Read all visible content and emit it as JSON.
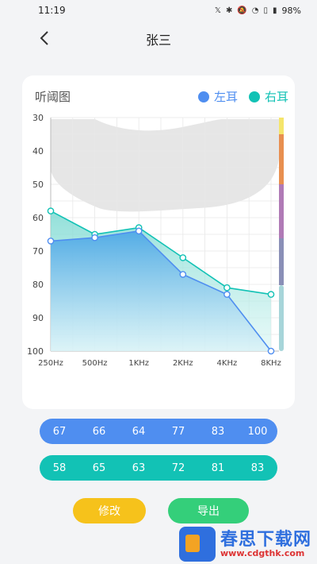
{
  "status": {
    "time": "11:19",
    "battery": "98%"
  },
  "header": {
    "title": "张三"
  },
  "chart_card": {
    "title": "听阈图",
    "legend_left": "左耳",
    "legend_right": "右耳"
  },
  "colors": {
    "left": "#4f8ef0",
    "right": "#12c2b5",
    "edit": "#f6c21b",
    "export": "#34cf7a"
  },
  "chart_data": {
    "type": "line",
    "categories": [
      "250Hz",
      "500Hz",
      "1KHz",
      "2KHz",
      "4KHz",
      "8KHz"
    ],
    "series": [
      {
        "name": "左耳",
        "values": [
          67,
          66,
          64,
          77,
          83,
          100
        ]
      },
      {
        "name": "右耳",
        "values": [
          58,
          65,
          63,
          72,
          81,
          83
        ]
      }
    ],
    "ylim": [
      30,
      100
    ],
    "yticks": [
      30,
      40,
      50,
      60,
      70,
      80,
      90,
      100
    ],
    "y_inverted": true,
    "grid": true
  },
  "values": {
    "left": [
      "67",
      "66",
      "64",
      "77",
      "83",
      "100"
    ],
    "right": [
      "58",
      "65",
      "63",
      "72",
      "81",
      "83"
    ]
  },
  "buttons": {
    "edit": "修改",
    "export": "导出"
  },
  "watermark": {
    "name": "春思下载网",
    "url": "www.cdgthk.com"
  }
}
